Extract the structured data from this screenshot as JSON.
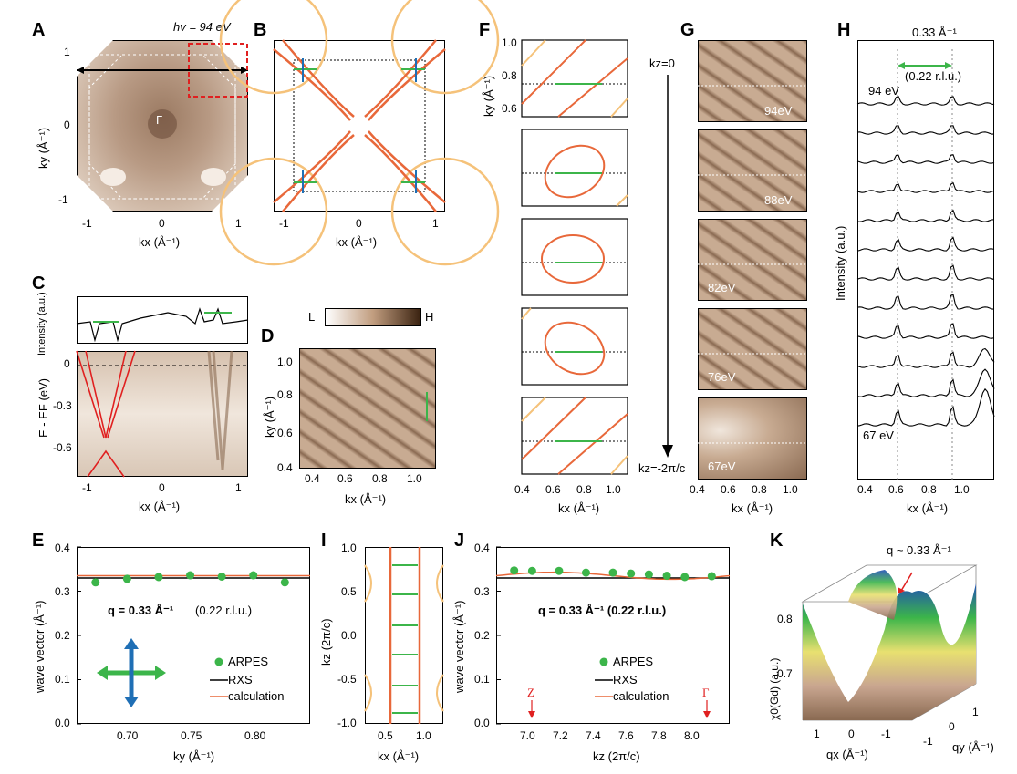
{
  "panels": {
    "A": {
      "letter": "A",
      "hv": "hv = 94 eV",
      "gamma": "Γ",
      "xlabel": "kx (Å⁻¹)",
      "ylabel": "ky (Å⁻¹)",
      "xticks": [
        "-1",
        "0",
        "1"
      ],
      "yticks": [
        "1",
        "0",
        "-1"
      ]
    },
    "B": {
      "letter": "B",
      "xlabel": "kx (Å⁻¹)",
      "xticks": [
        "-1",
        "0",
        "1"
      ]
    },
    "C": {
      "letter": "C",
      "top_ylabel": "Intensity (a.u.)",
      "ylabel": "E - EF (eV)",
      "xlabel": "kx (Å⁻¹)",
      "yticks": [
        "0",
        "-0.3",
        "-0.6"
      ],
      "xticks": [
        "-1",
        "0",
        "1"
      ]
    },
    "D": {
      "letter": "D",
      "cbar_low": "L",
      "cbar_high": "H",
      "xlabel": "kx (Å⁻¹)",
      "ylabel": "ky (Å⁻¹)",
      "xticks": [
        "0.4",
        "0.6",
        "0.8",
        "1.0"
      ],
      "yticks": [
        "1.0",
        "0.8",
        "0.6",
        "0.4"
      ]
    },
    "E": {
      "letter": "E",
      "ylabel": "wave vector (Å⁻¹)",
      "xlabel": "ky (Å⁻¹)",
      "xticks": [
        "0.70",
        "0.75",
        "0.80"
      ],
      "yticks": [
        "0.4",
        "0.3",
        "0.2",
        "0.1",
        "0.0"
      ],
      "q_text": "q = 0.33 Å⁻¹",
      "rlu": "(0.22 r.l.u.)",
      "legend": [
        "ARPES",
        "RXS",
        "calculation"
      ]
    },
    "F": {
      "letter": "F",
      "ylabel": "ky (Å⁻¹)",
      "xlabel": "kx (Å⁻¹)",
      "yticks": [
        "1.0",
        "0.8",
        "0.6"
      ],
      "xticks": [
        "0.4",
        "0.6",
        "0.8",
        "1.0"
      ],
      "kz_top": "kz=0",
      "kz_bottom": "kz=-2π/c"
    },
    "G": {
      "letter": "G",
      "energies": [
        "94eV",
        "88eV",
        "82eV",
        "76eV",
        "67eV"
      ],
      "xlabel": "kx (Å⁻¹)",
      "xticks": [
        "0.4",
        "0.6",
        "0.8",
        "1.0"
      ]
    },
    "H": {
      "letter": "H",
      "ylabel": "Intensity (a.u.)",
      "xlabel": "kx (Å⁻¹)",
      "q_text": "0.33 Å⁻¹",
      "rlu": "(0.22 r.l.u.)",
      "e_top": "94 eV",
      "e_bottom": "67 eV",
      "xticks": [
        "0.4",
        "0.6",
        "0.8",
        "1.0"
      ]
    },
    "I": {
      "letter": "I",
      "ylabel": "kz (2π/c)",
      "xlabel": "kx (Å⁻¹)",
      "yticks": [
        "1.0",
        "0.5",
        "0.0",
        "-0.5",
        "-1.0"
      ],
      "xticks": [
        "0.5",
        "1.0"
      ]
    },
    "J": {
      "letter": "J",
      "ylabel": "wave vector (Å⁻¹)",
      "xlabel": "kz (2π/c)",
      "xticks": [
        "7.0",
        "7.2",
        "7.4",
        "7.6",
        "7.8",
        "8.0"
      ],
      "yticks": [
        "0.4",
        "0.3",
        "0.2",
        "0.1",
        "0.0"
      ],
      "q_text": "q = 0.33 Å⁻¹ (0.22 r.l.u.)",
      "legend": [
        "ARPES",
        "RXS",
        "calculation"
      ],
      "Z": "Z",
      "Gamma": "Γ"
    },
    "K": {
      "letter": "K",
      "q_annot": "q ~ 0.33 Å⁻¹",
      "zlabel": "χ0(Gd) (a.u.)",
      "zticks": [
        "0.8",
        "0.7"
      ],
      "xlabel": "qx (Å⁻¹)",
      "ylabel": "qy (Å⁻¹)",
      "xticks": [
        "1",
        "0",
        "-1"
      ],
      "yticks": [
        "-1",
        "0",
        "1"
      ]
    }
  },
  "colors": {
    "orange": "#e8683a",
    "light_orange": "#f5c27a",
    "green": "#3cb54a",
    "blue": "#1f6fb5",
    "red": "#e02020"
  },
  "chart_data": [
    {
      "type": "scatter",
      "title": "E",
      "x": [
        0.67,
        0.695,
        0.72,
        0.745,
        0.77,
        0.795,
        0.82
      ],
      "values": [
        0.32,
        0.328,
        0.332,
        0.336,
        0.333,
        0.336,
        0.32
      ],
      "series": [
        {
          "name": "ARPES",
          "values": [
            0.32,
            0.328,
            0.332,
            0.336,
            0.333,
            0.336,
            0.32
          ]
        },
        {
          "name": "RXS",
          "values": [
            0.33
          ]
        },
        {
          "name": "calculation",
          "values": [
            0.335
          ]
        }
      ],
      "xlabel": "ky (Å⁻¹)",
      "ylabel": "wave vector (Å⁻¹)",
      "ylim": [
        0,
        0.4
      ]
    },
    {
      "type": "scatter",
      "title": "J",
      "x": [
        6.95,
        7.05,
        7.2,
        7.35,
        7.5,
        7.6,
        7.7,
        7.8,
        7.9,
        8.05
      ],
      "values": [
        0.347,
        0.346,
        0.346,
        0.342,
        0.342,
        0.34,
        0.338,
        0.335,
        0.332,
        0.334
      ],
      "series": [
        {
          "name": "ARPES",
          "values": [
            0.347,
            0.346,
            0.346,
            0.342,
            0.342,
            0.34,
            0.338,
            0.335,
            0.332,
            0.334
          ]
        },
        {
          "name": "RXS",
          "values": [
            0.33
          ]
        },
        {
          "name": "calculation",
          "values": [
            0.335
          ]
        }
      ],
      "xlabel": "kz (2π/c)",
      "ylabel": "wave vector (Å⁻¹)",
      "ylim": [
        0,
        0.4
      ]
    }
  ]
}
